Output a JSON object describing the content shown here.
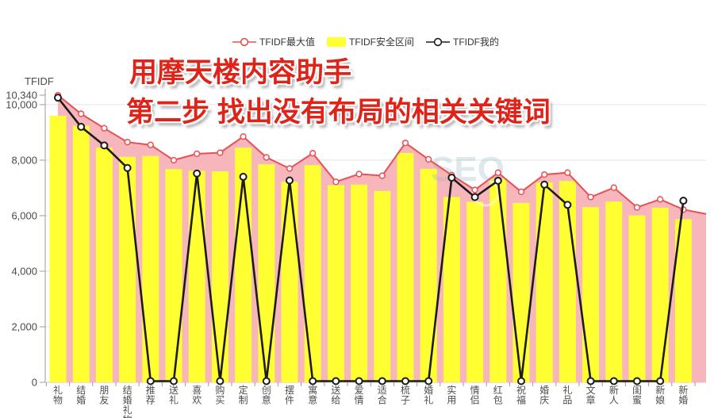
{
  "overlay": {
    "line1": "用摩天楼内容助手",
    "line2": "第二步 找出没有布局的相关关键词",
    "color": "#e02318"
  },
  "watermark": {
    "text": "SEO"
  },
  "chart_data": {
    "type": "combo",
    "title": "",
    "xlabel": "",
    "ylabel": "TFIDF",
    "ylim": [
      0,
      10340
    ],
    "grid": true,
    "legend_position": "top",
    "area_fill": "#f6b6bb",
    "right_edge_value": 6060,
    "categories": [
      "礼物",
      "结婚",
      "朋友",
      "结婚礼物",
      "推荐",
      "送礼",
      "喜欢",
      "购买",
      "定制",
      "创意",
      "摆件",
      "寓意",
      "送给",
      "爱情",
      "适合",
      "梳子",
      "婚礼",
      "实用",
      "情侣",
      "红包",
      "祝福",
      "婚庆",
      "礼品",
      "文章",
      "新人",
      "闺蜜",
      "新娘",
      "新婚"
    ],
    "yticks": [
      {
        "value": 0,
        "label": "0",
        "grid": false
      },
      {
        "value": 2000,
        "label": "2,000",
        "grid": true
      },
      {
        "value": 4000,
        "label": "4,000",
        "grid": true
      },
      {
        "value": 6000,
        "label": "6,000",
        "grid": true
      },
      {
        "value": 8000,
        "label": "8,000",
        "grid": true
      },
      {
        "value": 10000,
        "label": "10,000",
        "grid": true
      },
      {
        "value": 10340,
        "label": "10,340",
        "grid": false
      }
    ],
    "series": [
      {
        "name": "TFIDF最大值",
        "type": "line",
        "color": "#e85053",
        "values": [
          10340,
          9670,
          9150,
          8650,
          8550,
          8000,
          8230,
          8270,
          8850,
          8100,
          7700,
          8250,
          7220,
          7500,
          7440,
          8620,
          8030,
          7460,
          6930,
          7550,
          6860,
          7480,
          7550,
          6670,
          7010,
          6300,
          6590,
          6220
        ]
      },
      {
        "name": "TFIDF安全区间",
        "type": "bar",
        "color": "#ffff32",
        "values": [
          9600,
          9240,
          8450,
          8120,
          8150,
          7680,
          7620,
          7600,
          8450,
          7850,
          7220,
          7820,
          7100,
          7120,
          6890,
          8260,
          7690,
          6670,
          6500,
          7340,
          6460,
          7200,
          7250,
          6310,
          6510,
          6010,
          6290,
          5880
        ]
      },
      {
        "name": "TFIDF我的",
        "type": "line",
        "color": "#1b1b1b",
        "values": [
          10250,
          9200,
          8530,
          7720,
          0,
          0,
          7520,
          0,
          7400,
          0,
          7270,
          0,
          0,
          0,
          0,
          0,
          0,
          7370,
          6670,
          7260,
          0,
          7120,
          6390,
          0,
          0,
          0,
          0,
          6540
        ]
      }
    ]
  }
}
